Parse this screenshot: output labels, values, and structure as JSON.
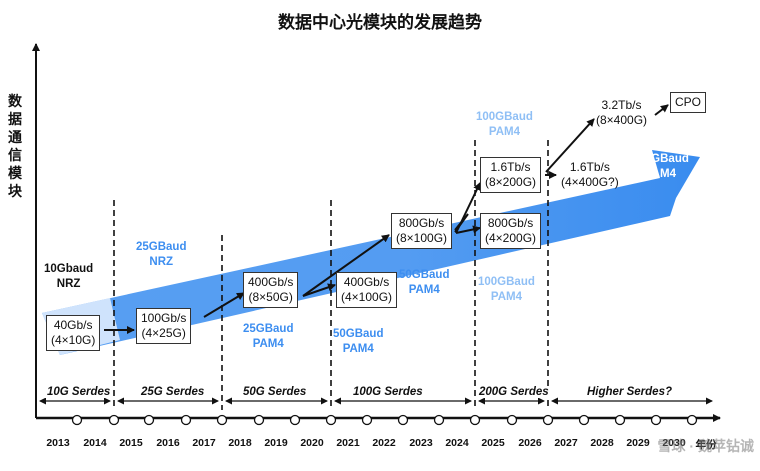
{
  "title": "数据中心光模块的发展趋势",
  "y_axis_label": "数据通信模块",
  "years": [
    "2013",
    "2014",
    "2015",
    "2016",
    "2017",
    "2018",
    "2019",
    "2020",
    "2021",
    "2022",
    "2023",
    "2024",
    "2025",
    "2026",
    "2027",
    "2028",
    "2029",
    "2030",
    "年份"
  ],
  "modules": {
    "m40g": [
      "40Gb/s",
      "(4×10G)"
    ],
    "m100g": [
      "100Gb/s",
      "(4×25G)"
    ],
    "m400g_a": [
      "400Gb/s",
      "(8×50G)"
    ],
    "m400g_b": [
      "400Gb/s",
      "(4×100G)"
    ],
    "m800g_a": [
      "800Gb/s",
      "(8×100G)"
    ],
    "m800g_b": [
      "800Gb/s",
      "(4×200G)"
    ],
    "m1600_a": [
      "1.6Tb/s",
      "(8×200G)"
    ],
    "m1600_b": [
      "1.6Tb/s",
      "(4×400G?)"
    ],
    "m3200": [
      "3.2Tb/s",
      "(8×400G)"
    ],
    "cpo": "CPO"
  },
  "baud_labels": {
    "b10": [
      "10Gbaud",
      "NRZ"
    ],
    "b25nrz": [
      "25GBaud",
      "NRZ"
    ],
    "b25pam": [
      "25GBaud",
      "PAM4"
    ],
    "b50pam_a": [
      "50GBaud",
      "PAM4"
    ],
    "b50pam_b": [
      "50GBaud",
      "PAM4"
    ],
    "b100_top": [
      "100GBaud",
      "PAM4"
    ],
    "b100_mid": [
      "100GBaud",
      "PAM4"
    ],
    "b200": [
      "200GBaud",
      "PAM4"
    ]
  },
  "serdes": [
    "10G Serdes",
    "25G Serdes",
    "50G Serdes",
    "100G Serdes",
    "200G Serdes",
    "Higher Serdes?"
  ],
  "watermark": "雪球 · 魏苹钻诚",
  "colors": {
    "arrow": "#3d8ef0",
    "arrow_light": "#bcd9fb",
    "accent_text": "#3d8ef0",
    "light_text": "#8fbff5"
  }
}
